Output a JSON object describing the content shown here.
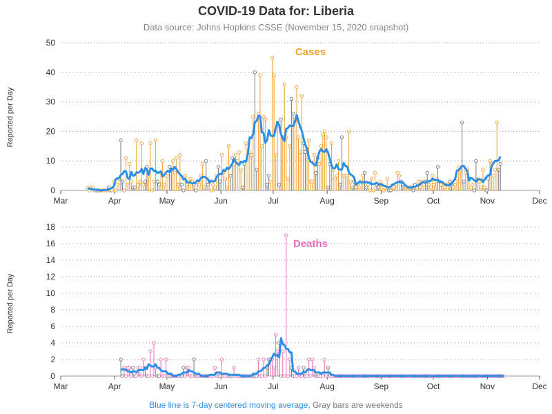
{
  "title": "COVID-19 Data for: Liberia",
  "subtitle": "Data source: Johns Hopkins CSSE (November 15, 2020 snapshot)",
  "footer": {
    "moving_avg_note": "Blue line is 7-day centered moving average,",
    "weekend_note": "Gray bars are weekends"
  },
  "colors": {
    "cases": "#f0a030",
    "deaths": "#e870b8",
    "weekend": "#777777",
    "moving_average": "#2d8ee8",
    "grid": "#999999"
  },
  "chart_data": [
    {
      "type": "bar",
      "panel": "Cases",
      "ylabel": "Reported per Day",
      "xlim": [
        "2020-03-01",
        "2020-12-01"
      ],
      "ylim": [
        0,
        50
      ],
      "yticks": [
        0,
        10,
        20,
        30,
        40,
        50
      ],
      "xtick_labels": [
        "Mar",
        "Apr",
        "May",
        "Jun",
        "Jul",
        "Aug",
        "Sep",
        "Oct",
        "Nov",
        "Dec"
      ],
      "grid": "horizontal dotted",
      "start_date": "2020-03-16",
      "daily_values": [
        1,
        0,
        1,
        1,
        0,
        0,
        0,
        0,
        0,
        0,
        0,
        0,
        1,
        0,
        0,
        3,
        0,
        2,
        4,
        17,
        3,
        0,
        11,
        2,
        9,
        3,
        1,
        1,
        17,
        2,
        3,
        16,
        2,
        3,
        8,
        5,
        16,
        0,
        3,
        17,
        3,
        2,
        6,
        10,
        2,
        5,
        5,
        8,
        7,
        10,
        6,
        11,
        2,
        12,
        2,
        0,
        5,
        2,
        3,
        4,
        3,
        2,
        0,
        3,
        2,
        5,
        9,
        1,
        10,
        2,
        3,
        0,
        2,
        1,
        5,
        8,
        3,
        12,
        6,
        4,
        1,
        15,
        5,
        11,
        9,
        12,
        10,
        13,
        7,
        1,
        9,
        16,
        11,
        13,
        12,
        25,
        40,
        7,
        26,
        39,
        15,
        25,
        24,
        2,
        5,
        3,
        45,
        39,
        12,
        23,
        2,
        24,
        18,
        36,
        18,
        4,
        15,
        31,
        26,
        24,
        35,
        18,
        13,
        32,
        16,
        13,
        14,
        17,
        3,
        3,
        12,
        6,
        11,
        9,
        15,
        19,
        20,
        18,
        1,
        9,
        16,
        7,
        4,
        5,
        10,
        2,
        18,
        5,
        5,
        5,
        20,
        3,
        1,
        3,
        1,
        2,
        1,
        3,
        5,
        6,
        1,
        2,
        0,
        4,
        0,
        6,
        2,
        1,
        3,
        2,
        0,
        1,
        4,
        0,
        0,
        1,
        1,
        2,
        6,
        5,
        3,
        2,
        1,
        1,
        1,
        1,
        1,
        0,
        2,
        1,
        3,
        1,
        3,
        2,
        3,
        6,
        2,
        1,
        5,
        2,
        4,
        8,
        3,
        2,
        1,
        1,
        2,
        2,
        3,
        2,
        1,
        2,
        4,
        8,
        7,
        23,
        3,
        6,
        7,
        4,
        1,
        2,
        0,
        10,
        4,
        3,
        1,
        7,
        1,
        0,
        4,
        10,
        9,
        5,
        7,
        23,
        7,
        9
      ]
    },
    {
      "type": "bar",
      "panel": "Deaths",
      "ylabel": "Reported per Day",
      "xlim": [
        "2020-03-01",
        "2020-12-01"
      ],
      "ylim": [
        0,
        18
      ],
      "yticks": [
        0,
        2,
        4,
        6,
        8,
        10,
        12,
        14,
        16,
        18
      ],
      "xtick_labels": [
        "Mar",
        "Apr",
        "May",
        "Jun",
        "Jul",
        "Aug",
        "Sep",
        "Oct",
        "Nov",
        "Dec"
      ],
      "grid": "horizontal dotted",
      "start_date": "2020-04-04",
      "daily_values": [
        2,
        0,
        1,
        0,
        1,
        1,
        0,
        1,
        0,
        0,
        1,
        1,
        0,
        2,
        1,
        0,
        0,
        3,
        0,
        4,
        1,
        0,
        0,
        2,
        0,
        0,
        2,
        0,
        0,
        0,
        0,
        0,
        0,
        0,
        0,
        0,
        1,
        0,
        1,
        1,
        0,
        0,
        2,
        0,
        0,
        0,
        0,
        0,
        0,
        0,
        0,
        0,
        0,
        0,
        1,
        0,
        0,
        0,
        2,
        0,
        0,
        0,
        0,
        0,
        0,
        1,
        0,
        0,
        0,
        0,
        0,
        0,
        0,
        0,
        0,
        0,
        0,
        0,
        0,
        2,
        0,
        0,
        2,
        0,
        1,
        2,
        2,
        2,
        1,
        5,
        3,
        4,
        0,
        3,
        0,
        17,
        0,
        2,
        1,
        0,
        0,
        0,
        1,
        0,
        0,
        1,
        0,
        0,
        2,
        0,
        2,
        1,
        0,
        0,
        0,
        0,
        0,
        2,
        0,
        1,
        0,
        0,
        0,
        0,
        0,
        0,
        0,
        0,
        0,
        0,
        0,
        0,
        0,
        0,
        0,
        0,
        0,
        0,
        0,
        0,
        0,
        0,
        0,
        0,
        0,
        0,
        0,
        0,
        0,
        0,
        0,
        0,
        0,
        0,
        0,
        0,
        0,
        0,
        0,
        0,
        0,
        0,
        0,
        0,
        0,
        0,
        0,
        0,
        0,
        0,
        0,
        0,
        0,
        0,
        0,
        0,
        0,
        0,
        0,
        0,
        0,
        0,
        0,
        0,
        0,
        0,
        0,
        0,
        0,
        0,
        0,
        0,
        0,
        0,
        0,
        0,
        0,
        0,
        0,
        0,
        0,
        0,
        0,
        0,
        0,
        0,
        0,
        0,
        0,
        0,
        0,
        0,
        0,
        0,
        0,
        0,
        0,
        0,
        0,
        0,
        0
      ]
    }
  ]
}
